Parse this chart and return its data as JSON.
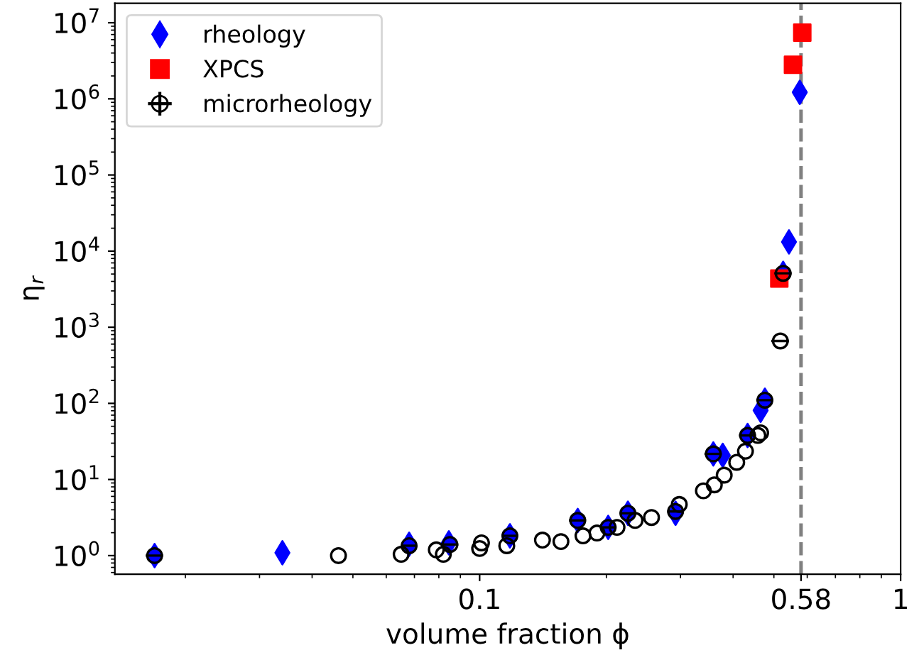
{
  "chart_data": {
    "type": "scatter",
    "xlabel": "volume fraction ϕ",
    "ylabel": "η$_{r}$",
    "log": "xy",
    "grid": false,
    "legend": "top left",
    "xlim": [
      0.0136,
      1
    ],
    "ylim": [
      0.57,
      18000000
    ],
    "xticks": [
      0.1,
      0.58,
      1
    ],
    "yticks": [
      {
        "value": 1,
        "label": "10$^{0}$"
      },
      {
        "value": 10,
        "label": "10$^{1}$"
      },
      {
        "value": 100,
        "label": "10$^{2}$"
      },
      {
        "value": 1000,
        "label": "10$^{3}$"
      },
      {
        "value": 10000,
        "label": "10$^{4}$"
      },
      {
        "value": 100000,
        "label": "10$^{5}$"
      },
      {
        "value": 1000000,
        "label": "10$^{6}$"
      },
      {
        "value": 10000000,
        "label": "10$^{7}$"
      }
    ],
    "ref_lines": [
      {
        "axis": "x",
        "value": 0.58,
        "color": "#808080",
        "line_style": "dashed"
      }
    ],
    "series": [
      {
        "name": "rheology",
        "color": "#0000ff",
        "marker": "diamond",
        "x": [
          0.0169,
          0.034,
          0.068,
          0.0845,
          0.118,
          0.171,
          0.202,
          0.225,
          0.292,
          0.359,
          0.378,
          0.433,
          0.465,
          0.476,
          0.526,
          0.543,
          0.576
        ],
        "values": [
          1.0,
          1.09,
          1.41,
          1.47,
          1.82,
          2.9,
          2.35,
          3.6,
          3.6,
          21.7,
          20.8,
          37.9,
          81,
          110,
          5100,
          13200,
          1220000
        ]
      },
      {
        "name": "XPCS",
        "color": "#ff0000",
        "marker": "square",
        "x": [
          0.515,
          0.555,
          0.584
        ],
        "values": [
          4360,
          2800000,
          7400000
        ]
      },
      {
        "name": "microrheology",
        "color": "#000000",
        "marker": "circle",
        "x": [
          0.0169,
          0.0462,
          0.0651,
          0.068,
          0.0789,
          0.082,
          0.085,
          0.1,
          0.101,
          0.116,
          0.118,
          0.141,
          0.156,
          0.171,
          0.176,
          0.19,
          0.202,
          0.212,
          0.225,
          0.234,
          0.256,
          0.292,
          0.298,
          0.34,
          0.361,
          0.381,
          0.359,
          0.408,
          0.428,
          0.433,
          0.458,
          0.465,
          0.476,
          0.518,
          0.526
        ],
        "values": [
          1.0,
          1.0,
          1.04,
          1.35,
          1.19,
          1.04,
          1.4,
          1.24,
          1.47,
          1.35,
          1.82,
          1.6,
          1.53,
          2.9,
          1.82,
          1.98,
          2.35,
          2.35,
          3.6,
          2.9,
          3.17,
          3.8,
          4.7,
          7.1,
          8.5,
          11.4,
          21.7,
          16.8,
          23.5,
          37.9,
          37.9,
          41,
          110,
          660,
          5100
        ],
        "xerrors": [
          0.0008,
          null,
          null,
          0.003,
          null,
          null,
          0.004,
          null,
          null,
          null,
          0.005,
          null,
          null,
          0.008,
          null,
          null,
          0.009,
          null,
          0.01,
          null,
          null,
          0.013,
          null,
          null,
          null,
          null,
          0.017,
          null,
          null,
          0.02,
          null,
          null,
          0.022,
          0.025,
          0.025
        ]
      }
    ]
  }
}
